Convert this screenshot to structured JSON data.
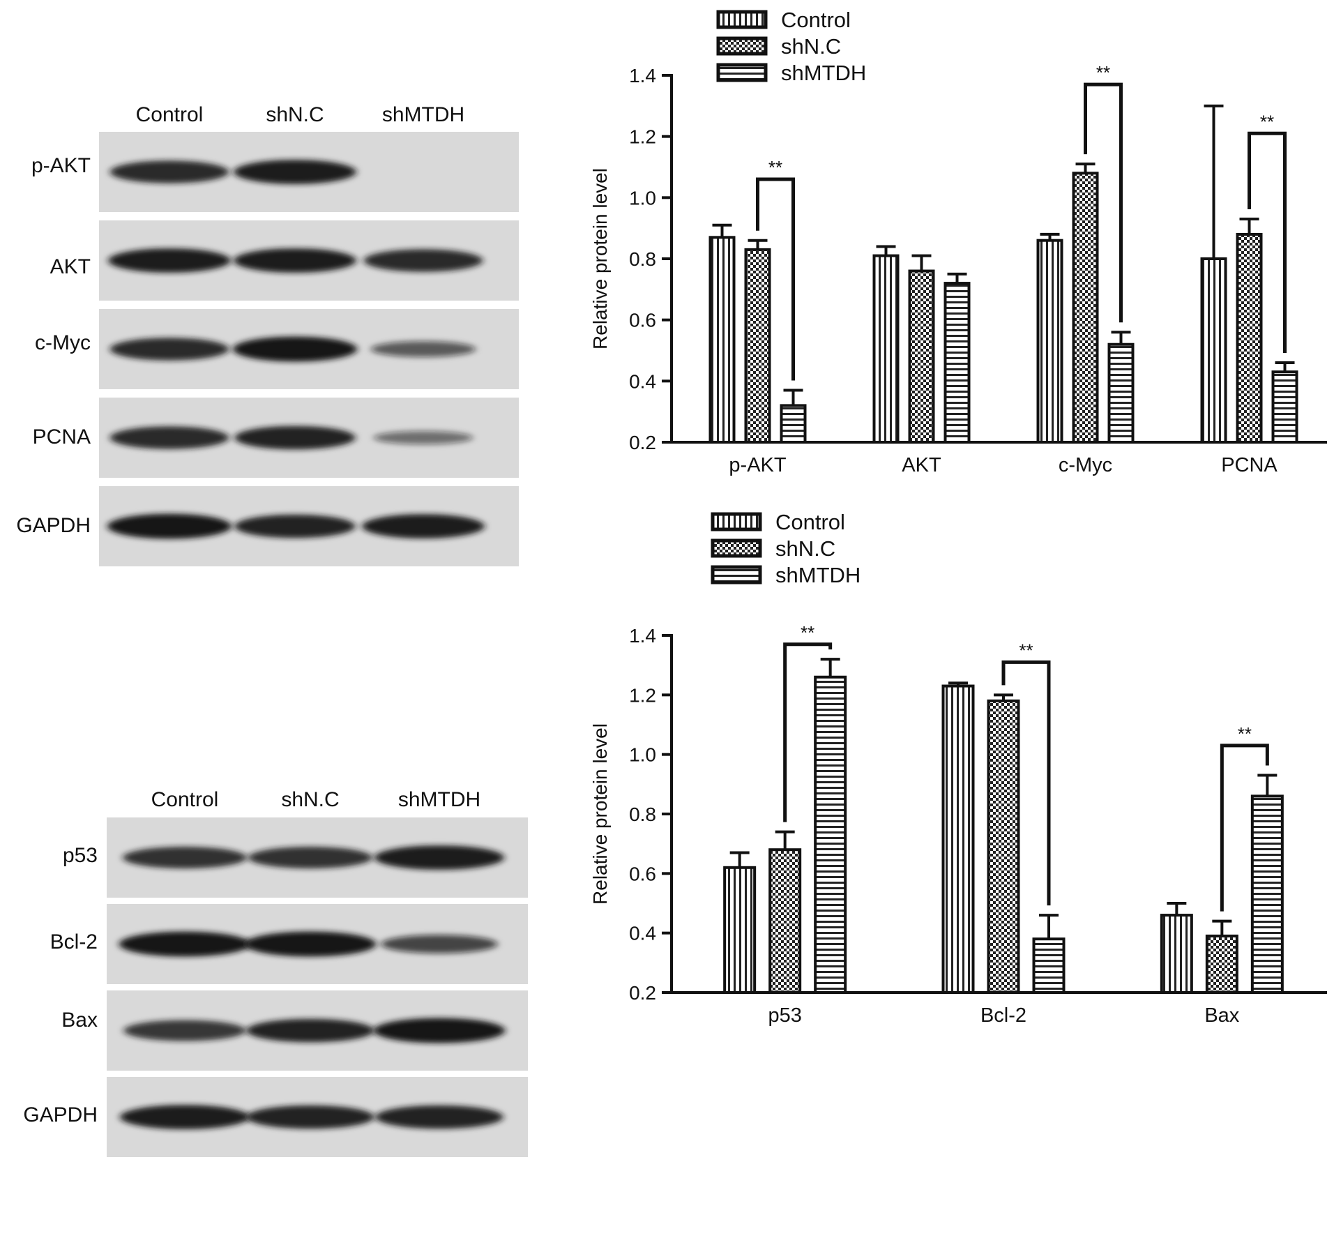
{
  "colors": {
    "axis": "#111111",
    "bar_fill": "#ffffff",
    "blot_bg": "#d9d9d9",
    "band": "#141414"
  },
  "blot_top": {
    "lanes": [
      "Control",
      "shN.C",
      "shMTDH"
    ],
    "rows": [
      {
        "label": "p-AKT",
        "intensity": [
          0.85,
          0.95,
          0.0
        ]
      },
      {
        "label": "AKT",
        "intensity": [
          0.95,
          0.95,
          0.85
        ]
      },
      {
        "label": "c-Myc",
        "intensity": [
          0.85,
          1.0,
          0.45
        ]
      },
      {
        "label": "PCNA",
        "intensity": [
          0.85,
          0.9,
          0.3
        ]
      },
      {
        "label": "GAPDH",
        "intensity": [
          1.0,
          0.9,
          0.95
        ]
      }
    ]
  },
  "blot_bottom": {
    "lanes": [
      "Control",
      "shN.C",
      "shMTDH"
    ],
    "rows": [
      {
        "label": "p53",
        "intensity": [
          0.8,
          0.8,
          0.95
        ]
      },
      {
        "label": "Bcl-2",
        "intensity": [
          1.0,
          1.0,
          0.6
        ]
      },
      {
        "label": "Bax",
        "intensity": [
          0.75,
          0.9,
          1.0
        ]
      },
      {
        "label": "GAPDH",
        "intensity": [
          0.95,
          0.9,
          0.9
        ]
      }
    ]
  },
  "chart_data": [
    {
      "type": "bar",
      "categories": [
        "p-AKT",
        "AKT",
        "c-Myc",
        "PCNA"
      ],
      "ylabel": "Relative protein level",
      "ylim": [
        0.2,
        1.4
      ],
      "yticks": [
        "0.2",
        "0.4",
        "0.6",
        "0.8",
        "1.0",
        "1.2",
        "1.4"
      ],
      "legend_position": "top-left",
      "series": [
        {
          "name": "Control",
          "pattern": "vertical",
          "values": [
            0.87,
            0.81,
            0.86,
            0.8
          ],
          "errors": [
            0.04,
            0.03,
            0.02,
            0.5
          ]
        },
        {
          "name": "shN.C",
          "pattern": "checker",
          "values": [
            0.83,
            0.76,
            1.08,
            0.88
          ],
          "errors": [
            0.03,
            0.05,
            0.03,
            0.05
          ]
        },
        {
          "name": "shMTDH",
          "pattern": "horizontal",
          "values": [
            0.32,
            0.72,
            0.52,
            0.43
          ],
          "errors": [
            0.05,
            0.03,
            0.04,
            0.03
          ]
        }
      ],
      "significance": [
        {
          "category": 0,
          "from": 1,
          "to": 2,
          "label": "**",
          "y": 1.06
        },
        {
          "category": 2,
          "from": 1,
          "to": 2,
          "label": "**",
          "y": 1.37
        },
        {
          "category": 3,
          "from": 1,
          "to": 2,
          "label": "**",
          "y": 1.21
        }
      ]
    },
    {
      "type": "bar",
      "categories": [
        "p53",
        "Bcl-2",
        "Bax"
      ],
      "ylabel": "Relative protein level",
      "ylim": [
        0.2,
        1.4
      ],
      "yticks": [
        "0.2",
        "0.4",
        "0.6",
        "0.8",
        "1.0",
        "1.2",
        "1.4"
      ],
      "legend_position": "top-left",
      "series": [
        {
          "name": "Control",
          "pattern": "vertical",
          "values": [
            0.62,
            1.23,
            0.46
          ],
          "errors": [
            0.05,
            0.01,
            0.04
          ]
        },
        {
          "name": "shN.C",
          "pattern": "checker",
          "values": [
            0.68,
            1.18,
            0.39
          ],
          "errors": [
            0.06,
            0.02,
            0.05
          ]
        },
        {
          "name": "shMTDH",
          "pattern": "horizontal",
          "values": [
            1.26,
            0.38,
            0.86
          ],
          "errors": [
            0.06,
            0.08,
            0.07
          ]
        }
      ],
      "significance": [
        {
          "category": 0,
          "from": 1,
          "to": 2,
          "label": "**",
          "y": 1.37
        },
        {
          "category": 1,
          "from": 1,
          "to": 2,
          "label": "**",
          "y": 1.31
        },
        {
          "category": 2,
          "from": 1,
          "to": 2,
          "label": "**",
          "y": 1.03
        }
      ]
    }
  ]
}
